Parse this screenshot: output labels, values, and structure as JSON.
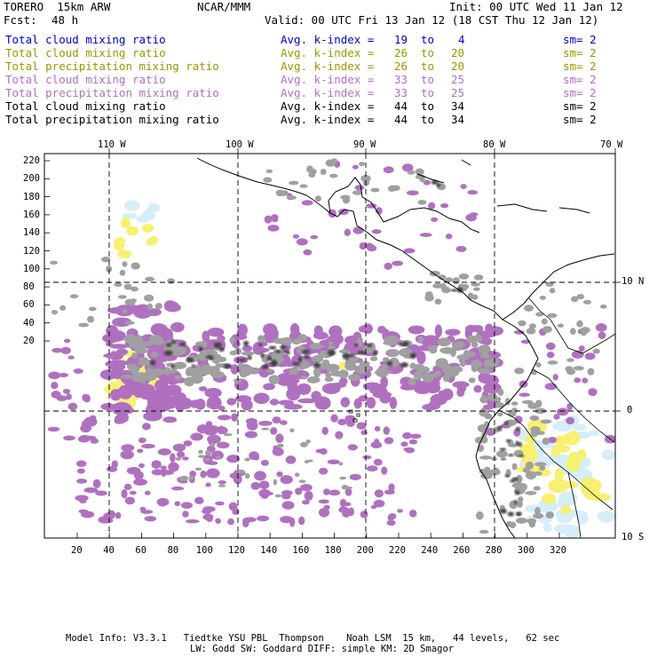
{
  "header": {
    "model": "TORERO  15km ARW",
    "org": "NCAR/MMM",
    "init": "Init: 00 UTC Wed 11 Jan 12",
    "fcst_label": "Fcst:",
    "fcst_value": "48 h",
    "valid": "Valid: 00 UTC Fri 13 Jan 12 (18 CST Thu 12 Jan 12)"
  },
  "legend": [
    {
      "field": "Total cloud mixing ratio",
      "kindex": "Avg. k-index =",
      "from": "19",
      "to_word": "to",
      "to": "4",
      "sm": "sm= 2",
      "color": "#0000cc"
    },
    {
      "field": "Total cloud mixing ratio",
      "kindex": "Avg. k-index =",
      "from": "26",
      "to_word": "to",
      "to": "20",
      "sm": "sm= 2",
      "color": "#999900"
    },
    {
      "field": "Total precipitation mixing ratio",
      "kindex": "Avg. k-index =",
      "from": "26",
      "to_word": "to",
      "to": "20",
      "sm": "sm= 2",
      "color": "#999900"
    },
    {
      "field": "Total cloud mixing ratio",
      "kindex": "Avg. k-index =",
      "from": "33",
      "to_word": "to",
      "to": "25",
      "sm": "sm= 2",
      "color": "#b070c0"
    },
    {
      "field": "Total precipitation mixing ratio",
      "kindex": "Avg. k-index =",
      "from": "33",
      "to_word": "to",
      "to": "25",
      "sm": "sm= 2",
      "color": "#b070c0"
    },
    {
      "field": "Total cloud mixing ratio",
      "kindex": "Avg. k-index =",
      "from": "44",
      "to_word": "to",
      "to": "34",
      "sm": "sm= 2",
      "color": "#000000"
    },
    {
      "field": "Total precipitation mixing ratio",
      "kindex": "Avg. k-index =",
      "from": "44",
      "to_word": "to",
      "to": "34",
      "sm": "sm= 2",
      "color": "#000000"
    }
  ],
  "axes": {
    "top_lon": [
      "110 W",
      "100 W",
      "90 W",
      "80 W",
      "70 W"
    ],
    "right_lat": [
      "10 N",
      "0",
      "10 S"
    ],
    "left_y": [
      "220",
      "200",
      "180",
      "160",
      "140",
      "120",
      "100",
      "80",
      "60",
      "40",
      "20"
    ],
    "bottom_x": [
      "20",
      "40",
      "60",
      "80",
      "100",
      "120",
      "140",
      "160",
      "180",
      "200",
      "220",
      "240",
      "260",
      "280",
      "300",
      "320"
    ]
  },
  "footer": {
    "line1": "Model Info: V3.3.1   Tiedtke YSU PBL  Thompson    Noah LSM  15 km,   44 levels,   62 sec",
    "line2": "LW: Godd SW: Goddard DIFF: simple KM: 2D Smagor"
  },
  "colors": {
    "cloud_light_blue": "#d6eef8",
    "yellow": "#f8f070",
    "purple": "#b070c0",
    "gray": "#a0a0a0",
    "dark_gray": "#404040",
    "coastline": "#000000"
  }
}
